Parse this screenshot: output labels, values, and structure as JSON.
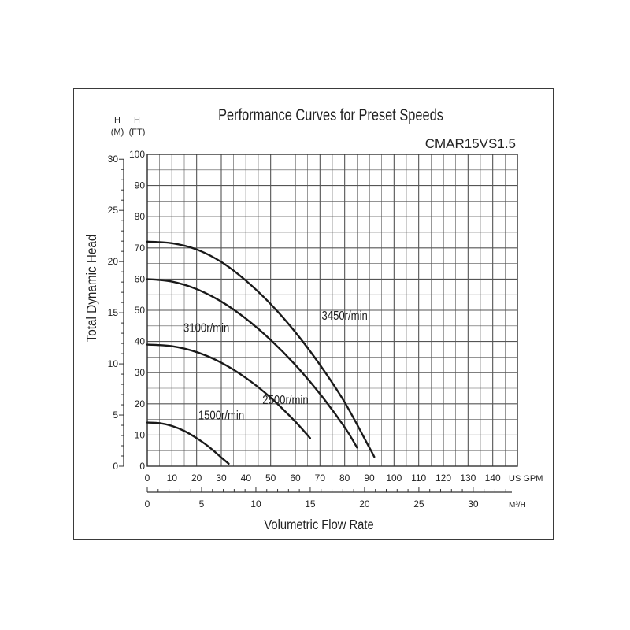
{
  "chart_data": {
    "type": "line",
    "title": "Performance Curves for Preset Speeds",
    "model": "CMAR15VS1.5",
    "ylabel": "Total Dynamic Head",
    "y_unit_m": "H\n(M)",
    "y_unit_m_lines": [
      "H",
      "(M)"
    ],
    "y_unit_ft_lines": [
      "H",
      "(FT)"
    ],
    "xlabel": "Volumetric Flow Rate",
    "x_unit_gpm": "US GPM",
    "x_unit_m3h": "M³/H",
    "x_gpm_ticks": [
      0,
      10,
      20,
      30,
      40,
      50,
      60,
      70,
      80,
      90,
      100,
      110,
      120,
      130,
      140
    ],
    "x_m3h_ticks": [
      0,
      5,
      10,
      15,
      20,
      25,
      30
    ],
    "y_ft_ticks": [
      0,
      10,
      20,
      30,
      40,
      50,
      60,
      70,
      80,
      90,
      100
    ],
    "y_m_ticks": [
      0,
      5,
      10,
      15,
      20,
      25,
      30
    ],
    "xlim_gpm": [
      0,
      150
    ],
    "ylim_ft": [
      0,
      100
    ],
    "grid": true,
    "series": [
      {
        "name": "3450r/min",
        "x": [
          0,
          10,
          20,
          30,
          40,
          50,
          60,
          70,
          80,
          90,
          92
        ],
        "y": [
          72,
          71.5,
          69.5,
          65.5,
          59.5,
          52,
          43,
          32.5,
          20.5,
          6,
          3
        ]
      },
      {
        "name": "3100r/min",
        "x": [
          0,
          10,
          20,
          30,
          40,
          50,
          60,
          70,
          80,
          85
        ],
        "y": [
          60,
          59.2,
          56.8,
          52.8,
          47.3,
          40.5,
          32.5,
          23.2,
          12.5,
          6
        ]
      },
      {
        "name": "2500r/min",
        "x": [
          0,
          10,
          20,
          30,
          40,
          50,
          60,
          66
        ],
        "y": [
          39,
          38.5,
          36.6,
          33.2,
          28.3,
          22,
          14.3,
          9
        ]
      },
      {
        "name": "1500r/min",
        "x": [
          0,
          5,
          10,
          15,
          20,
          25,
          30,
          33
        ],
        "y": [
          14,
          13.8,
          12.9,
          11.3,
          9,
          6.2,
          2.8,
          0.8
        ]
      }
    ]
  }
}
